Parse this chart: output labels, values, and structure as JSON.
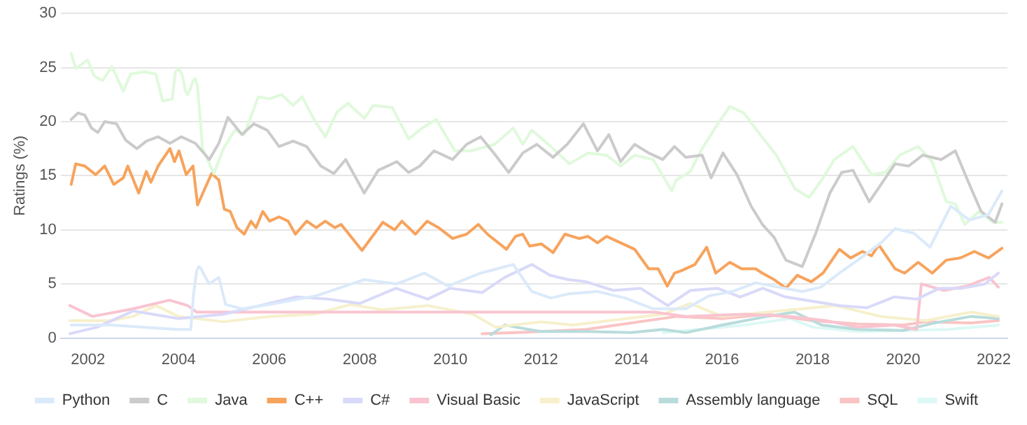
{
  "chart_data": {
    "type": "line",
    "ylabel": "Ratings (%)",
    "xlim": [
      2001.4,
      2022.3
    ],
    "xticks": [
      2002,
      2004,
      2006,
      2008,
      2010,
      2012,
      2014,
      2016,
      2018,
      2020,
      2022
    ],
    "ylim": [
      0,
      30
    ],
    "yticks": [
      0,
      5,
      10,
      15,
      20,
      25,
      30
    ],
    "grid": "y",
    "legend": "bottom",
    "marker": "none",
    "series": [
      {
        "name": "Python",
        "color": "#dbeafa",
        "x": [
          2001.63,
          2002.5,
          2003.96,
          2004.27,
          2004.33,
          2004.4,
          2004.45,
          2004.5,
          2004.57,
          2004.68,
          2004.89,
          2005.04,
          2005.4,
          2006.01,
          2007.04,
          2008.1,
          2008.82,
          2009.43,
          2009.95,
          2010.67,
          2011.39,
          2011.8,
          2012.22,
          2012.63,
          2013.25,
          2013.86,
          2014.48,
          2015.2,
          2015.71,
          2016.22,
          2016.74,
          2017.25,
          2017.77,
          2018.18,
          2018.59,
          2019.0,
          2019.51,
          2019.82,
          2020.23,
          2020.59,
          2021.05,
          2021.46,
          2021.88,
          2022.18
        ],
        "values": [
          1.2,
          1.2,
          0.8,
          0.8,
          4.0,
          6.2,
          6.6,
          6.4,
          5.8,
          5.0,
          5.6,
          3.1,
          2.7,
          3.1,
          3.9,
          5.4,
          5.0,
          6.0,
          4.8,
          6.0,
          6.8,
          4.3,
          3.7,
          4.1,
          4.3,
          3.7,
          2.7,
          2.7,
          3.9,
          4.3,
          5.1,
          4.7,
          4.3,
          4.7,
          6.0,
          7.2,
          8.8,
          10.1,
          9.7,
          8.4,
          12.2,
          10.9,
          11.4,
          13.6
        ]
      },
      {
        "name": "C",
        "color": "#cbcbcb",
        "x": [
          2001.63,
          2001.78,
          2001.93,
          2002.08,
          2002.22,
          2002.37,
          2002.63,
          2002.83,
          2003.08,
          2003.29,
          2003.55,
          2003.81,
          2004.06,
          2004.37,
          2004.68,
          2004.89,
          2005.09,
          2005.4,
          2005.66,
          2005.96,
          2006.22,
          2006.53,
          2006.83,
          2007.14,
          2007.43,
          2007.69,
          2008.1,
          2008.41,
          2008.82,
          2009.08,
          2009.33,
          2009.64,
          2010.05,
          2010.36,
          2010.67,
          2010.98,
          2011.29,
          2011.6,
          2011.91,
          2012.27,
          2012.58,
          2012.94,
          2013.25,
          2013.5,
          2013.76,
          2014.07,
          2014.38,
          2014.69,
          2014.95,
          2015.2,
          2015.56,
          2015.76,
          2016.02,
          2016.33,
          2016.64,
          2016.89,
          2017.15,
          2017.41,
          2017.77,
          2018.07,
          2018.38,
          2018.64,
          2018.89,
          2019.25,
          2019.51,
          2019.82,
          2020.12,
          2020.43,
          2020.84,
          2021.15,
          2021.46,
          2021.72,
          2022.03,
          2022.18
        ],
        "values": [
          20.2,
          20.8,
          20.6,
          19.4,
          19.0,
          20.0,
          19.8,
          18.3,
          17.5,
          18.2,
          18.6,
          18.0,
          18.6,
          18.0,
          16.5,
          18.0,
          20.4,
          18.8,
          19.8,
          19.2,
          17.7,
          18.2,
          17.7,
          15.9,
          15.2,
          16.5,
          13.4,
          15.5,
          16.3,
          15.3,
          15.9,
          17.3,
          16.5,
          17.9,
          18.6,
          17.0,
          15.3,
          17.1,
          17.9,
          16.7,
          17.9,
          19.8,
          17.3,
          18.8,
          16.3,
          17.9,
          17.1,
          16.5,
          17.7,
          16.7,
          16.9,
          14.8,
          17.1,
          15.1,
          12.2,
          10.5,
          9.3,
          7.2,
          6.6,
          9.7,
          13.4,
          15.3,
          15.5,
          12.6,
          14.2,
          16.1,
          15.9,
          16.9,
          16.5,
          17.3,
          14.2,
          11.7,
          10.7,
          12.4
        ]
      },
      {
        "name": "Java",
        "color": "#e0f9dc",
        "x": [
          2001.63,
          2001.73,
          2001.99,
          2002.14,
          2002.32,
          2002.53,
          2002.78,
          2002.94,
          2003.24,
          2003.5,
          2003.65,
          2003.86,
          2003.93,
          2004.01,
          2004.09,
          2004.15,
          2004.2,
          2004.26,
          2004.32,
          2004.37,
          2004.42,
          2004.53,
          2004.78,
          2004.99,
          2005.24,
          2005.45,
          2005.76,
          2006.01,
          2006.27,
          2006.53,
          2006.73,
          2006.99,
          2007.24,
          2007.5,
          2007.74,
          2008.1,
          2008.3,
          2008.72,
          2009.08,
          2009.38,
          2009.69,
          2010.1,
          2010.46,
          2010.98,
          2011.39,
          2011.6,
          2011.8,
          2012.22,
          2012.63,
          2013.04,
          2013.45,
          2013.76,
          2014.07,
          2014.48,
          2014.89,
          2014.99,
          2015.3,
          2015.56,
          2015.86,
          2016.17,
          2016.48,
          2016.84,
          2017.2,
          2017.61,
          2017.92,
          2018.23,
          2018.48,
          2018.89,
          2019.3,
          2019.61,
          2019.92,
          2020.33,
          2020.64,
          2020.95,
          2021.15,
          2021.36,
          2021.67,
          2021.98,
          2022.18
        ],
        "values": [
          26.3,
          24.9,
          25.7,
          24.2,
          23.8,
          25.1,
          22.8,
          24.4,
          24.6,
          24.4,
          21.9,
          22.1,
          24.6,
          24.9,
          24.2,
          22.8,
          22.5,
          23.0,
          23.8,
          24.0,
          23.2,
          17.5,
          15.2,
          17.5,
          19.2,
          18.8,
          22.3,
          22.1,
          22.5,
          21.5,
          22.3,
          20.2,
          18.6,
          20.9,
          21.7,
          20.3,
          21.5,
          21.3,
          18.4,
          19.4,
          20.2,
          17.3,
          17.3,
          17.9,
          19.4,
          17.9,
          19.2,
          17.7,
          16.1,
          17.1,
          16.9,
          15.9,
          16.9,
          16.5,
          13.6,
          14.6,
          15.4,
          17.5,
          19.5,
          21.4,
          20.8,
          18.8,
          16.9,
          13.8,
          13.0,
          14.8,
          16.5,
          17.7,
          15.1,
          15.3,
          16.9,
          17.7,
          16.3,
          12.6,
          12.4,
          10.5,
          11.7,
          10.7,
          10.7
        ]
      },
      {
        "name": "C++",
        "color": "#f7a35c",
        "x": [
          2001.63,
          2001.73,
          2001.93,
          2002.17,
          2002.37,
          2002.57,
          2002.78,
          2002.88,
          2003.12,
          2003.29,
          2003.39,
          2003.55,
          2003.81,
          2003.91,
          2004.01,
          2004.17,
          2004.32,
          2004.42,
          2004.58,
          2004.73,
          2004.89,
          2005.01,
          2005.14,
          2005.29,
          2005.45,
          2005.6,
          2005.71,
          2005.86,
          2006.01,
          2006.22,
          2006.42,
          2006.58,
          2006.83,
          2007.04,
          2007.24,
          2007.45,
          2007.59,
          2008.05,
          2008.51,
          2008.77,
          2008.93,
          2009.23,
          2009.49,
          2009.74,
          2010.05,
          2010.36,
          2010.62,
          2010.82,
          2011.24,
          2011.44,
          2011.6,
          2011.75,
          2012.01,
          2012.27,
          2012.53,
          2012.84,
          2013.04,
          2013.25,
          2013.45,
          2013.76,
          2014.07,
          2014.38,
          2014.59,
          2014.79,
          2014.95,
          2015.09,
          2015.4,
          2015.66,
          2015.86,
          2016.17,
          2016.43,
          2016.74,
          2016.89,
          2017.15,
          2017.41,
          2017.66,
          2017.97,
          2018.23,
          2018.59,
          2018.84,
          2019.1,
          2019.3,
          2019.46,
          2019.82,
          2020.03,
          2020.33,
          2020.64,
          2020.95,
          2021.26,
          2021.57,
          2021.88,
          2022.18
        ],
        "values": [
          14.2,
          16.1,
          15.9,
          15.1,
          15.9,
          14.2,
          14.8,
          15.9,
          13.4,
          15.4,
          14.4,
          15.9,
          17.5,
          16.3,
          17.3,
          15.1,
          15.9,
          12.3,
          13.8,
          15.2,
          14.6,
          11.9,
          11.7,
          10.2,
          9.6,
          10.8,
          10.2,
          11.7,
          10.8,
          11.2,
          10.8,
          9.6,
          10.8,
          10.2,
          10.8,
          10.2,
          10.5,
          8.1,
          10.7,
          10.0,
          10.8,
          9.6,
          10.8,
          10.2,
          9.2,
          9.6,
          10.5,
          9.6,
          8.2,
          9.4,
          9.6,
          8.5,
          8.7,
          7.9,
          9.6,
          9.2,
          9.4,
          8.8,
          9.4,
          8.8,
          8.2,
          6.4,
          6.4,
          4.8,
          6.0,
          6.2,
          6.8,
          8.4,
          6.0,
          7.0,
          6.4,
          6.4,
          6.0,
          5.4,
          4.6,
          5.8,
          5.2,
          6.0,
          8.2,
          7.4,
          8.0,
          7.6,
          8.6,
          6.4,
          6.0,
          7.0,
          6.0,
          7.2,
          7.4,
          8.0,
          7.4,
          8.3
        ]
      },
      {
        "name": "C#",
        "color": "#d9daf9",
        "x": [
          2001.6,
          2002.2,
          2003.0,
          2004.0,
          2005.0,
          2005.8,
          2006.6,
          2007.3,
          2008.0,
          2008.8,
          2009.5,
          2010.0,
          2010.7,
          2011.2,
          2011.8,
          2012.2,
          2012.6,
          2013.0,
          2013.6,
          2014.2,
          2014.8,
          2015.3,
          2015.9,
          2016.4,
          2016.9,
          2017.4,
          2018.0,
          2018.6,
          2019.2,
          2019.8,
          2020.3,
          2020.8,
          2021.3,
          2021.8,
          2022.1
        ],
        "values": [
          0.4,
          1.0,
          2.5,
          1.8,
          2.2,
          3.0,
          3.8,
          3.6,
          3.2,
          4.6,
          3.6,
          4.6,
          4.2,
          5.6,
          6.8,
          5.8,
          5.4,
          5.2,
          4.4,
          4.6,
          3.0,
          4.4,
          4.6,
          3.8,
          4.6,
          3.8,
          3.4,
          3.0,
          2.8,
          3.8,
          3.6,
          4.6,
          4.6,
          5.0,
          6.0
        ]
      },
      {
        "name": "Visual Basic",
        "color": "#f9c4d0",
        "x": [
          2001.6,
          2002.1,
          2003.0,
          2003.8,
          2004.2,
          2004.4,
          2014.5,
          2015.2,
          2016.5,
          2017.5,
          2018.3,
          2019.0,
          2019.8,
          2020.3,
          2020.4,
          2020.9,
          2021.4,
          2021.9,
          2022.1
        ],
        "values": [
          3.0,
          2.0,
          2.7,
          3.5,
          3.0,
          2.4,
          2.4,
          2.0,
          2.2,
          2.0,
          1.6,
          1.0,
          1.2,
          0.8,
          5.0,
          4.4,
          4.8,
          5.6,
          4.7
        ]
      },
      {
        "name": "JavaScript",
        "color": "#f6f0cc",
        "x": [
          2001.6,
          2002.5,
          2003.0,
          2003.5,
          2004.0,
          2005.0,
          2006.0,
          2007.0,
          2007.8,
          2008.5,
          2009.5,
          2010.5,
          2011.0,
          2012.0,
          2012.7,
          2013.5,
          2014.7,
          2015.3,
          2016.0,
          2017.0,
          2018.5,
          2019.5,
          2020.5,
          2021.5,
          2022.1
        ],
        "values": [
          1.6,
          1.6,
          2.0,
          3.0,
          2.0,
          1.5,
          2.0,
          2.2,
          3.1,
          2.6,
          3.0,
          2.2,
          1.0,
          1.5,
          1.2,
          1.6,
          2.2,
          3.2,
          2.0,
          2.4,
          3.0,
          2.0,
          1.6,
          2.4,
          2.0
        ]
      },
      {
        "name": "Assembly language",
        "color": "#b8dcdb",
        "x": [
          2010.9,
          2011.2,
          2012.0,
          2013.0,
          2014.0,
          2014.7,
          2015.2,
          2016.0,
          2017.0,
          2017.6,
          2018.2,
          2019.0,
          2020.0,
          2020.7,
          2021.5,
          2022.1
        ],
        "values": [
          0.3,
          1.2,
          0.6,
          0.6,
          0.5,
          0.8,
          0.5,
          1.2,
          2.0,
          2.4,
          1.2,
          0.8,
          0.7,
          1.4,
          2.0,
          1.8
        ]
      },
      {
        "name": "SQL",
        "color": "#fac4c4",
        "x": [
          2010.7,
          2012.0,
          2013.0,
          2014.0,
          2015.0,
          2016.0,
          2017.0,
          2018.0,
          2019.0,
          2020.0,
          2020.5,
          2021.5,
          2022.1
        ],
        "values": [
          0.4,
          0.6,
          0.8,
          1.4,
          2.0,
          1.8,
          2.2,
          1.6,
          1.3,
          1.2,
          1.5,
          1.4,
          1.6
        ]
      },
      {
        "name": "Swift",
        "color": "#dcf8f5",
        "x": [
          2014.7,
          2015.5,
          2016.5,
          2017.5,
          2018.0,
          2019.0,
          2020.0,
          2021.0,
          2022.1
        ],
        "values": [
          0.5,
          0.8,
          1.2,
          1.8,
          1.0,
          0.6,
          0.7,
          0.8,
          1.2
        ]
      }
    ]
  }
}
